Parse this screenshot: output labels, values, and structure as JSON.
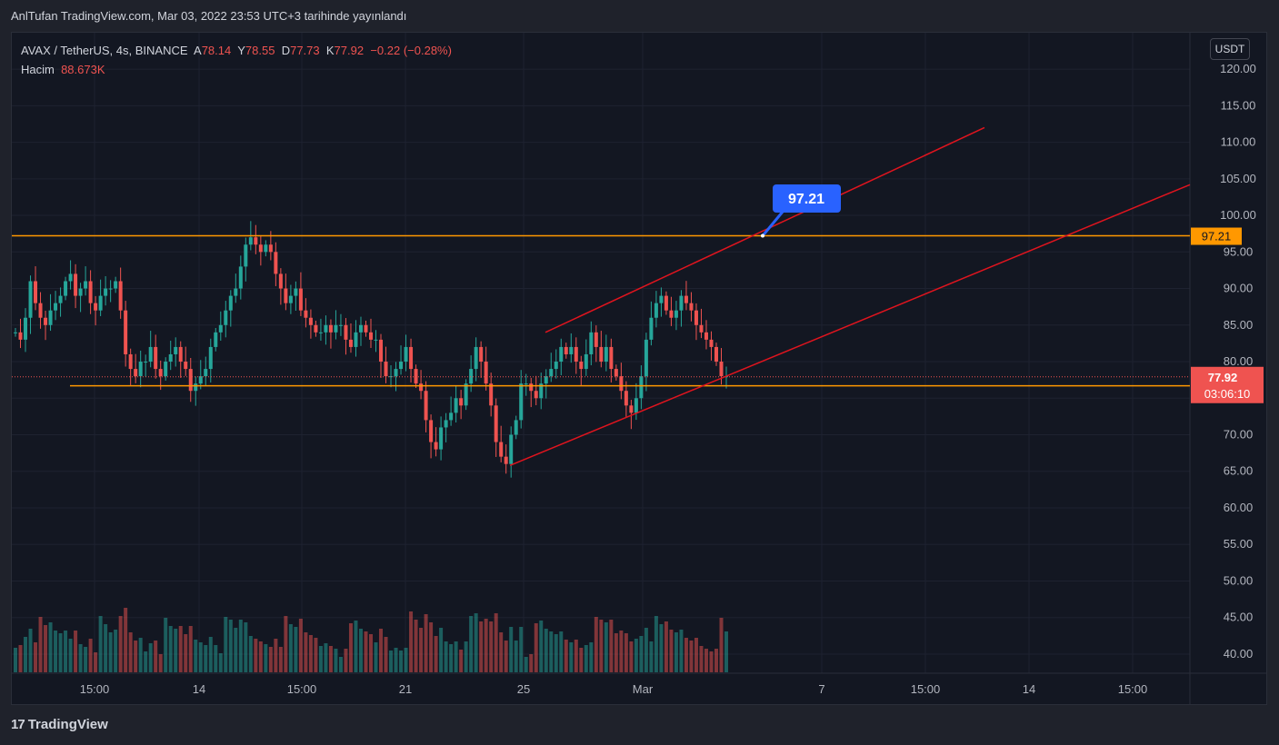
{
  "header": {
    "publish_line": "AnlTufan TradingView.com, Mar 03, 2022 23:53 UTC+3 tarihinde yayınlandı"
  },
  "legend": {
    "symbol": "AVAX / TetherUS, 4s, BINANCE",
    "o_label": "A",
    "o_value": "78.14",
    "h_label": "Y",
    "h_value": "78.55",
    "l_label": "D",
    "l_value": "77.73",
    "c_label": "K",
    "c_value": "77.92",
    "change": "−0.22 (−0.28%)",
    "volume_label": "Hacim",
    "volume_value": "88.673K"
  },
  "axis_unit": "USDT",
  "footer": {
    "brand": "TradingView",
    "brand_mark": "17"
  },
  "colors": {
    "up": "#26a69a",
    "down": "#ef5350",
    "orange": "#ff9800",
    "channel": "#e0141e",
    "callout": "#2962ff",
    "background": "#131722",
    "grid": "#1e2230"
  },
  "chart_data": {
    "type": "candlestick",
    "ylim": [
      39,
      122
    ],
    "y_ticks": [
      "40.00",
      "45.00",
      "50.00",
      "55.00",
      "60.00",
      "65.00",
      "70.00",
      "75.00",
      "80.00",
      "85.00",
      "90.00",
      "95.00",
      "100.00",
      "105.00",
      "110.00",
      "115.00",
      "120.00"
    ],
    "x_ticks": [
      "15:00",
      "14",
      "15:00",
      "21",
      "25",
      "Mar",
      "7",
      "15:00",
      "14",
      "15:00"
    ],
    "last_price": {
      "value": "77.92",
      "countdown": "03:06:10"
    },
    "levels": [
      {
        "name": "resistance",
        "value": 97.21,
        "label": "97.21"
      },
      {
        "name": "support",
        "value": 76.69,
        "label": "76.69"
      }
    ],
    "callout": {
      "label": "97.21"
    },
    "ohlc_closes": [
      84,
      83,
      86,
      91,
      88,
      86,
      85,
      87,
      88,
      89,
      91,
      92,
      89,
      90,
      91,
      88,
      87,
      89,
      90,
      90,
      91,
      87,
      81,
      79,
      78,
      80,
      80,
      82,
      79,
      78,
      80,
      81,
      82,
      80,
      79,
      76,
      77,
      78,
      79,
      82,
      84,
      85,
      87,
      89,
      90,
      93,
      96,
      97,
      96,
      95,
      96,
      95,
      92,
      90,
      88,
      89,
      90,
      87,
      86,
      85,
      84,
      84,
      85,
      84,
      85,
      85,
      83,
      82,
      84,
      85,
      84,
      83,
      83,
      80,
      78,
      78,
      79,
      80,
      82,
      79,
      77,
      76,
      72,
      69,
      68,
      71,
      72,
      73,
      75,
      74,
      77,
      79,
      82,
      80,
      77,
      74,
      69,
      67,
      66,
      70,
      72,
      77,
      77,
      76,
      75,
      77,
      78,
      79,
      80,
      82,
      81,
      82,
      80,
      79,
      81,
      84,
      82,
      80,
      82,
      79,
      78,
      76,
      74,
      73,
      75,
      78,
      83,
      86,
      88,
      89,
      87,
      86,
      87,
      89,
      88,
      87,
      85,
      84,
      83,
      82,
      80,
      78,
      78
    ]
  }
}
